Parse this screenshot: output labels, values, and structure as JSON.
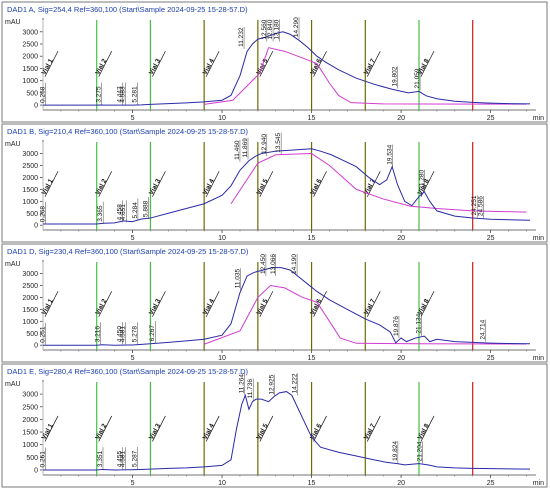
{
  "chart_data": [
    {
      "type": "line",
      "title": "DAD1 A, Sig=254,4 Ref=360,100 (Start\\Sample 2024-09-25 15-28-57.D)",
      "ylabel": "mAU",
      "xlabel": "min",
      "xlim": [
        0,
        27.2
      ],
      "ylim": [
        -200,
        3400
      ],
      "yticks": [
        0,
        500,
        1000,
        1500,
        2000,
        2500,
        3000
      ],
      "xticks": [
        5,
        10,
        15,
        20,
        25
      ],
      "trace": [
        [
          0,
          0
        ],
        [
          3,
          0
        ],
        [
          3.2,
          5
        ],
        [
          3.5,
          0
        ],
        [
          5,
          0
        ],
        [
          5.5,
          10
        ],
        [
          6,
          30
        ],
        [
          7,
          60
        ],
        [
          8,
          90
        ],
        [
          9,
          130
        ],
        [
          10,
          200
        ],
        [
          10.5,
          400
        ],
        [
          11,
          1200
        ],
        [
          11.4,
          2200
        ],
        [
          11.7,
          2500
        ],
        [
          12,
          2700
        ],
        [
          12.3,
          2750
        ],
        [
          12.7,
          2850
        ],
        [
          13.1,
          2950
        ],
        [
          13.4,
          3000
        ],
        [
          13.8,
          2900
        ],
        [
          14.3,
          2650
        ],
        [
          14.8,
          2350
        ],
        [
          15.3,
          2000
        ],
        [
          15.8,
          1750
        ],
        [
          16.5,
          1450
        ],
        [
          17.5,
          1100
        ],
        [
          18.5,
          850
        ],
        [
          19.5,
          650
        ],
        [
          20.4,
          500
        ],
        [
          21,
          560
        ],
        [
          21.4,
          380
        ],
        [
          22,
          260
        ],
        [
          23,
          160
        ],
        [
          24,
          110
        ],
        [
          25,
          80
        ],
        [
          26,
          60
        ],
        [
          27.2,
          50
        ]
      ],
      "baseline": [
        [
          9,
          30
        ],
        [
          10.6,
          200
        ],
        [
          12.1,
          1300
        ],
        [
          12.6,
          2350
        ],
        [
          13.5,
          2200
        ],
        [
          14.6,
          1900
        ],
        [
          15.3,
          1700
        ],
        [
          16,
          900
        ],
        [
          16.5,
          400
        ],
        [
          17.2,
          100
        ],
        [
          19,
          50
        ],
        [
          21,
          45
        ],
        [
          27,
          40
        ]
      ],
      "vials": [
        {
          "label": "Vial 1",
          "x": 0,
          "color": "#c0c0c0"
        },
        {
          "label": "Vial 2",
          "x": 3,
          "color": "#44c044"
        },
        {
          "label": "Vial 3",
          "x": 6,
          "color": "#44c044"
        },
        {
          "label": "Vial 4",
          "x": 9,
          "color": "#6b6b00"
        },
        {
          "label": "Vial 5",
          "x": 12,
          "color": "#6b6b00"
        },
        {
          "label": "Vial 6",
          "x": 15,
          "color": "#6b6b00"
        },
        {
          "label": "Vial 7",
          "x": 18,
          "color": "#6b6b00"
        },
        {
          "label": "Vial 8",
          "x": 21,
          "color": "#44c044"
        },
        {
          "label": "",
          "x": 24,
          "color": "#d01818"
        }
      ],
      "peak_labels": [
        {
          "text": "0.268",
          "x": 0.15,
          "y": 10
        },
        {
          "text": "3.275",
          "x": 3.27,
          "y": 20
        },
        {
          "text": "4.443",
          "x": 4.45,
          "y": 20
        },
        {
          "text": "4.583",
          "x": 4.6,
          "y": 20
        },
        {
          "text": "5.281",
          "x": 5.28,
          "y": 20
        },
        {
          "text": "11.232",
          "x": 11.23,
          "y": 2300
        },
        {
          "text": "12.560",
          "x": 12.5,
          "y": 2600
        },
        {
          "text": "12.840",
          "x": 12.85,
          "y": 2600
        },
        {
          "text": "13.180",
          "x": 13.2,
          "y": 2600
        },
        {
          "text": "14.290",
          "x": 14.3,
          "y": 2700
        },
        {
          "text": "19.802",
          "x": 19.8,
          "y": 680
        },
        {
          "text": "21.059",
          "x": 21.06,
          "y": 600
        }
      ]
    },
    {
      "type": "line",
      "title": "DAD1 B, Sig=210,4 Ref=360,100 (Start\\Sample 2024-09-25 15-28-57.D)",
      "ylabel": "mAU",
      "xlabel": "min",
      "xlim": [
        0,
        27.2
      ],
      "ylim": [
        -200,
        3400
      ],
      "yticks": [
        0,
        500,
        1000,
        1500,
        2000,
        2500,
        3000
      ],
      "xticks": [
        5,
        10,
        15,
        20,
        25
      ],
      "trace": [
        [
          0,
          50
        ],
        [
          3,
          50
        ],
        [
          3.4,
          80
        ],
        [
          4,
          100
        ],
        [
          4.5,
          180
        ],
        [
          5,
          150
        ],
        [
          5.5,
          260
        ],
        [
          6,
          300
        ],
        [
          7,
          500
        ],
        [
          8,
          700
        ],
        [
          9,
          900
        ],
        [
          10,
          1250
        ],
        [
          10.5,
          1650
        ],
        [
          11,
          2300
        ],
        [
          11.5,
          2700
        ],
        [
          11.9,
          2900
        ],
        [
          12.2,
          3000
        ],
        [
          13,
          3100
        ],
        [
          14,
          3150
        ],
        [
          15,
          3200
        ],
        [
          15.5,
          3100
        ],
        [
          16.1,
          2950
        ],
        [
          16.8,
          2700
        ],
        [
          17.5,
          2450
        ],
        [
          18.2,
          2000
        ],
        [
          18.8,
          1700
        ],
        [
          19.2,
          1900
        ],
        [
          19.5,
          2450
        ],
        [
          19.8,
          1700
        ],
        [
          20.2,
          1000
        ],
        [
          20.6,
          820
        ],
        [
          21,
          1200
        ],
        [
          21.3,
          1400
        ],
        [
          21.6,
          1000
        ],
        [
          22,
          600
        ],
        [
          23,
          380
        ],
        [
          24,
          300
        ],
        [
          25,
          250
        ],
        [
          26,
          230
        ],
        [
          27.2,
          210
        ]
      ],
      "baseline": [
        [
          10.5,
          900
        ],
        [
          12,
          2600
        ],
        [
          13,
          2950
        ],
        [
          15,
          3000
        ],
        [
          16,
          2500
        ],
        [
          17.5,
          1500
        ],
        [
          19,
          1100
        ],
        [
          20.5,
          800
        ],
        [
          22,
          700
        ],
        [
          24,
          600
        ],
        [
          27,
          550
        ]
      ],
      "vials": [
        {
          "label": "Vial 1",
          "x": 0,
          "color": "#c0c0c0"
        },
        {
          "label": "Vial 2",
          "x": 3,
          "color": "#44c044"
        },
        {
          "label": "Vial 3",
          "x": 6,
          "color": "#44c044"
        },
        {
          "label": "Vial 4",
          "x": 9,
          "color": "#6b6b00"
        },
        {
          "label": "Vial 5",
          "x": 12,
          "color": "#6b6b00"
        },
        {
          "label": "Vial 6",
          "x": 15,
          "color": "#6b6b00"
        },
        {
          "label": "Vial 7",
          "x": 18,
          "color": "#6b6b00"
        },
        {
          "label": "Vial 8",
          "x": 21,
          "color": "#44c044"
        },
        {
          "label": "",
          "x": 24,
          "color": "#d01818"
        }
      ],
      "peak_labels": [
        {
          "text": "0.268",
          "x": 0.15,
          "y": 40
        },
        {
          "text": "3.365",
          "x": 3.36,
          "y": 60
        },
        {
          "text": "4.458",
          "x": 4.45,
          "y": 120
        },
        {
          "text": "4.651",
          "x": 4.65,
          "y": 120
        },
        {
          "text": "5.284",
          "x": 5.3,
          "y": 200
        },
        {
          "text": "5.888",
          "x": 5.9,
          "y": 260
        },
        {
          "text": "11.460",
          "x": 11.0,
          "y": 2650
        },
        {
          "text": "11.869",
          "x": 11.45,
          "y": 2750
        },
        {
          "text": "12.940",
          "x": 12.5,
          "y": 2900
        },
        {
          "text": "13.545",
          "x": 13.3,
          "y": 2950
        },
        {
          "text": "19.534",
          "x": 19.53,
          "y": 2450
        },
        {
          "text": "21.280",
          "x": 21.3,
          "y": 1400
        },
        {
          "text": "24.251",
          "x": 24.25,
          "y": 330
        },
        {
          "text": "24.586",
          "x": 24.6,
          "y": 300
        }
      ]
    },
    {
      "type": "line",
      "title": "DAD1 D, Sig=230,4 Ref=360,100 (Start\\Sample 2024-09-25 15-28-57.D)",
      "ylabel": "mAU",
      "xlabel": "min",
      "xlim": [
        0,
        27.2
      ],
      "ylim": [
        -200,
        3400
      ],
      "yticks": [
        0,
        500,
        1000,
        1500,
        2000,
        2500,
        3000
      ],
      "xticks": [
        5,
        10,
        15,
        20,
        25
      ],
      "trace": [
        [
          0,
          0
        ],
        [
          3,
          0
        ],
        [
          3.3,
          20
        ],
        [
          4,
          0
        ],
        [
          5,
          10
        ],
        [
          6,
          60
        ],
        [
          7,
          120
        ],
        [
          8,
          180
        ],
        [
          9,
          250
        ],
        [
          10,
          420
        ],
        [
          10.5,
          900
        ],
        [
          11,
          2200
        ],
        [
          11.4,
          2900
        ],
        [
          11.8,
          3050
        ],
        [
          12.3,
          3150
        ],
        [
          12.8,
          3250
        ],
        [
          13.3,
          3250
        ],
        [
          13.8,
          3150
        ],
        [
          14.3,
          2850
        ],
        [
          14.8,
          2550
        ],
        [
          15.3,
          2250
        ],
        [
          16,
          1900
        ],
        [
          17,
          1500
        ],
        [
          18,
          1100
        ],
        [
          18.8,
          850
        ],
        [
          19.4,
          550
        ],
        [
          19.7,
          100
        ],
        [
          20,
          300
        ],
        [
          20.3,
          150
        ],
        [
          20.8,
          300
        ],
        [
          21.3,
          380
        ],
        [
          21.6,
          150
        ],
        [
          22,
          250
        ],
        [
          23,
          150
        ],
        [
          24,
          120
        ],
        [
          25,
          90
        ],
        [
          26,
          70
        ],
        [
          27.2,
          60
        ]
      ],
      "baseline": [
        [
          9,
          40
        ],
        [
          11,
          600
        ],
        [
          12,
          2000
        ],
        [
          12.7,
          2500
        ],
        [
          13.5,
          2400
        ],
        [
          14.5,
          2000
        ],
        [
          15.3,
          1800
        ],
        [
          16,
          1000
        ],
        [
          16.6,
          300
        ],
        [
          17.5,
          80
        ],
        [
          21,
          60
        ],
        [
          27,
          50
        ]
      ],
      "vials": [
        {
          "label": "Vial 1",
          "x": 0,
          "color": "#c0c0c0"
        },
        {
          "label": "Vial 2",
          "x": 3,
          "color": "#44c044"
        },
        {
          "label": "Vial 3",
          "x": 6,
          "color": "#44c044"
        },
        {
          "label": "Vial 4",
          "x": 9,
          "color": "#6b6b00"
        },
        {
          "label": "Vial 5",
          "x": 12,
          "color": "#6b6b00"
        },
        {
          "label": "Vial 6",
          "x": 15,
          "color": "#6b6b00"
        },
        {
          "label": "Vial 7",
          "x": 18,
          "color": "#6b6b00"
        },
        {
          "label": "Vial 8",
          "x": 21,
          "color": "#44c044"
        },
        {
          "label": "",
          "x": 24,
          "color": "#d01818"
        }
      ],
      "peak_labels": [
        {
          "text": "0.251",
          "x": 0.15,
          "y": 20
        },
        {
          "text": "3.216",
          "x": 3.2,
          "y": 40
        },
        {
          "text": "4.450",
          "x": 4.45,
          "y": 40
        },
        {
          "text": "4.581",
          "x": 4.6,
          "y": 40
        },
        {
          "text": "5.278",
          "x": 5.28,
          "y": 40
        },
        {
          "text": "6.267",
          "x": 6.27,
          "y": 80
        },
        {
          "text": "11.035",
          "x": 11.03,
          "y": 2300
        },
        {
          "text": "12.450",
          "x": 12.45,
          "y": 2900
        },
        {
          "text": "13.066",
          "x": 13.0,
          "y": 2900
        },
        {
          "text": "14.190",
          "x": 14.19,
          "y": 2900
        },
        {
          "text": "19.876",
          "x": 19.88,
          "y": 300
        },
        {
          "text": "21.134",
          "x": 21.13,
          "y": 400
        },
        {
          "text": "24.714",
          "x": 24.71,
          "y": 150
        }
      ]
    },
    {
      "type": "line",
      "title": "DAD1 E, Sig=280,4 Ref=360,100 (Start\\Sample 2024-09-25 15-28-57.D)",
      "ylabel": "mAU",
      "xlabel": "min",
      "xlim": [
        0,
        27.2
      ],
      "ylim": [
        -200,
        3400
      ],
      "yticks": [
        0,
        500,
        1000,
        1500,
        2000,
        2500,
        3000
      ],
      "xticks": [
        5,
        10,
        15,
        20,
        25
      ],
      "trace": [
        [
          0,
          0
        ],
        [
          3,
          0
        ],
        [
          3.3,
          20
        ],
        [
          4,
          0
        ],
        [
          5,
          10
        ],
        [
          6,
          30
        ],
        [
          7,
          60
        ],
        [
          8,
          80
        ],
        [
          9,
          120
        ],
        [
          10,
          180
        ],
        [
          10.5,
          400
        ],
        [
          10.8,
          1600
        ],
        [
          11.1,
          2600
        ],
        [
          11.3,
          2950
        ],
        [
          11.5,
          2400
        ],
        [
          11.7,
          2700
        ],
        [
          11.9,
          2800
        ],
        [
          12.2,
          2800
        ],
        [
          12.6,
          2700
        ],
        [
          12.9,
          2900
        ],
        [
          13.2,
          3050
        ],
        [
          13.6,
          3100
        ],
        [
          13.9,
          2950
        ],
        [
          14.2,
          2500
        ],
        [
          14.6,
          1900
        ],
        [
          15,
          1300
        ],
        [
          15.5,
          900
        ],
        [
          16.5,
          700
        ],
        [
          17.5,
          550
        ],
        [
          18.5,
          400
        ],
        [
          19.2,
          300
        ],
        [
          19.8,
          250
        ],
        [
          20.2,
          200
        ],
        [
          21,
          250
        ],
        [
          21.5,
          200
        ],
        [
          22,
          120
        ],
        [
          23,
          80
        ],
        [
          24,
          60
        ],
        [
          25,
          50
        ],
        [
          26,
          40
        ],
        [
          27.2,
          30
        ]
      ],
      "baseline": [],
      "vials": [
        {
          "label": "Vial 1",
          "x": 0,
          "color": "#c0c0c0"
        },
        {
          "label": "Vial 2",
          "x": 3,
          "color": "#44c044"
        },
        {
          "label": "Vial 3",
          "x": 6,
          "color": "#44c044"
        },
        {
          "label": "Vial 4",
          "x": 9,
          "color": "#6b6b00"
        },
        {
          "label": "Vial 5",
          "x": 12,
          "color": "#6b6b00"
        },
        {
          "label": "Vial 6",
          "x": 15,
          "color": "#6b6b00"
        },
        {
          "label": "Vial 7",
          "x": 18,
          "color": "#6b6b00"
        },
        {
          "label": "Vial 8",
          "x": 21,
          "color": "#44c044"
        },
        {
          "label": "",
          "x": 24,
          "color": "#d01818"
        }
      ],
      "peak_labels": [
        {
          "text": "0.261",
          "x": 0.15,
          "y": 20
        },
        {
          "text": "3.351",
          "x": 3.35,
          "y": 30
        },
        {
          "text": "4.455",
          "x": 4.45,
          "y": 30
        },
        {
          "text": "4.581",
          "x": 4.6,
          "y": 30
        },
        {
          "text": "5.287",
          "x": 5.29,
          "y": 40
        },
        {
          "text": "11.264",
          "x": 11.26,
          "y": 2950
        },
        {
          "text": "11.736",
          "x": 11.74,
          "y": 2750
        },
        {
          "text": "12.925",
          "x": 12.93,
          "y": 2900
        },
        {
          "text": "14.222",
          "x": 14.22,
          "y": 2950
        },
        {
          "text": "19.824",
          "x": 19.82,
          "y": 280
        },
        {
          "text": "21.204",
          "x": 21.2,
          "y": 260
        }
      ]
    }
  ]
}
